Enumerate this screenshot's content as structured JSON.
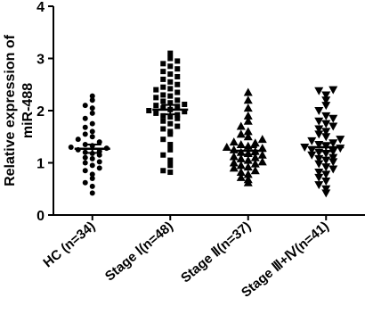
{
  "chart_data": {
    "type": "dot",
    "ylabel": [
      "Relative expression of",
      "miR-488"
    ],
    "ylim": [
      0,
      4
    ],
    "yticks": [
      0,
      1,
      2,
      3,
      4
    ],
    "categories": [
      "HC (n=34)",
      "Stage Ⅰ(n=48)",
      "Stage Ⅱ(n=37)",
      "Stage Ⅲ+Ⅳ(n=41)"
    ],
    "markers": [
      "circle",
      "square",
      "triangle-up",
      "triangle-down"
    ],
    "color": "#000000",
    "groups": [
      {
        "values": [
          0.42,
          0.55,
          0.62,
          0.7,
          0.78,
          0.85,
          0.9,
          0.95,
          1.0,
          1.02,
          1.08,
          1.1,
          1.15,
          1.18,
          1.2,
          1.22,
          1.25,
          1.28,
          1.3,
          1.33,
          1.35,
          1.4,
          1.45,
          1.5,
          1.55,
          1.6,
          1.68,
          1.75,
          1.85,
          1.95,
          2.05,
          2.1,
          2.2,
          2.28
        ],
        "mean": 1.27,
        "sem": 0.08
      },
      {
        "values": [
          0.82,
          0.85,
          0.95,
          1.05,
          1.15,
          1.25,
          1.35,
          1.45,
          1.55,
          1.6,
          1.65,
          1.7,
          1.75,
          1.8,
          1.85,
          1.88,
          1.9,
          1.92,
          1.95,
          1.98,
          2.0,
          2.02,
          2.05,
          2.08,
          2.1,
          2.12,
          2.15,
          2.18,
          2.2,
          2.25,
          2.28,
          2.3,
          2.35,
          2.4,
          2.42,
          2.45,
          2.5,
          2.55,
          2.6,
          2.65,
          2.7,
          2.75,
          2.8,
          2.85,
          2.9,
          2.95,
          3.0,
          3.1
        ],
        "mean": 2.02,
        "sem": 0.09
      },
      {
        "values": [
          0.62,
          0.68,
          0.72,
          0.78,
          0.82,
          0.85,
          0.9,
          0.92,
          0.95,
          0.98,
          1.0,
          1.02,
          1.05,
          1.08,
          1.1,
          1.12,
          1.15,
          1.18,
          1.2,
          1.22,
          1.25,
          1.28,
          1.3,
          1.32,
          1.35,
          1.38,
          1.4,
          1.45,
          1.5,
          1.55,
          1.6,
          1.7,
          1.8,
          1.9,
          2.05,
          2.2,
          2.35
        ],
        "mean": 1.23,
        "sem": 0.07
      },
      {
        "values": [
          0.42,
          0.5,
          0.58,
          0.65,
          0.72,
          0.78,
          0.82,
          0.88,
          0.92,
          0.98,
          1.02,
          1.05,
          1.08,
          1.1,
          1.15,
          1.18,
          1.2,
          1.22,
          1.25,
          1.28,
          1.3,
          1.32,
          1.35,
          1.38,
          1.42,
          1.45,
          1.5,
          1.55,
          1.6,
          1.65,
          1.7,
          1.75,
          1.8,
          1.85,
          1.9,
          2.0,
          2.1,
          2.2,
          2.3,
          2.38,
          2.4
        ],
        "mean": 1.3,
        "sem": 0.08
      }
    ]
  }
}
